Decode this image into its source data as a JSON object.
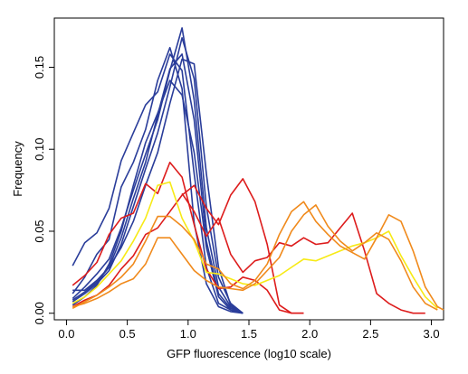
{
  "chart_data": {
    "type": "line",
    "title": "",
    "xlabel": "GFP fluorescence (log10 scale)",
    "ylabel": "Frequency",
    "xlim": [
      -0.1,
      3.1
    ],
    "ylim": [
      -0.004,
      0.18
    ],
    "xticks": [
      0.0,
      0.5,
      1.0,
      1.5,
      2.0,
      2.5,
      3.0
    ],
    "xtick_labels": [
      "0.0",
      "0.5",
      "1.0",
      "1.5",
      "2.0",
      "2.5",
      "3.0"
    ],
    "yticks": [
      0.0,
      0.05,
      0.1,
      0.15
    ],
    "ytick_labels": [
      "0.00",
      "0.05",
      "0.10",
      "0.15"
    ],
    "grid": false,
    "legend": "none",
    "series": [
      {
        "color": "#2a3d9a",
        "x": [
          0.05,
          0.15,
          0.25,
          0.35,
          0.45,
          0.55,
          0.65,
          0.75,
          0.85,
          0.95,
          1.05,
          1.15,
          1.25,
          1.35,
          1.45
        ],
        "y": [
          0.029,
          0.043,
          0.049,
          0.064,
          0.093,
          0.11,
          0.127,
          0.135,
          0.158,
          0.148,
          0.085,
          0.028,
          0.006,
          0.002,
          0.0
        ]
      },
      {
        "color": "#2a3d9a",
        "x": [
          0.05,
          0.15,
          0.25,
          0.35,
          0.45,
          0.55,
          0.65,
          0.75,
          0.85,
          0.95,
          1.05,
          1.15,
          1.25,
          1.35,
          1.45
        ],
        "y": [
          0.012,
          0.022,
          0.036,
          0.045,
          0.077,
          0.092,
          0.112,
          0.142,
          0.162,
          0.137,
          0.055,
          0.018,
          0.004,
          0.001,
          0.0
        ]
      },
      {
        "color": "#2a3d9a",
        "x": [
          0.05,
          0.15,
          0.25,
          0.35,
          0.45,
          0.55,
          0.65,
          0.75,
          0.85,
          0.95,
          1.05,
          1.15,
          1.25,
          1.35,
          1.45
        ],
        "y": [
          0.009,
          0.016,
          0.024,
          0.033,
          0.052,
          0.075,
          0.097,
          0.118,
          0.148,
          0.174,
          0.13,
          0.052,
          0.016,
          0.004,
          0.0
        ]
      },
      {
        "color": "#2a3d9a",
        "x": [
          0.05,
          0.15,
          0.25,
          0.35,
          0.45,
          0.55,
          0.65,
          0.75,
          0.85,
          0.95,
          1.05,
          1.15,
          1.25,
          1.35,
          1.45
        ],
        "y": [
          0.007,
          0.012,
          0.018,
          0.026,
          0.042,
          0.065,
          0.088,
          0.11,
          0.138,
          0.168,
          0.143,
          0.065,
          0.022,
          0.006,
          0.0
        ]
      },
      {
        "color": "#2a3d9a",
        "x": [
          0.05,
          0.15,
          0.25,
          0.35,
          0.45,
          0.55,
          0.65,
          0.75,
          0.85,
          0.95,
          1.05,
          1.15,
          1.25,
          1.35,
          1.45
        ],
        "y": [
          0.008,
          0.013,
          0.019,
          0.028,
          0.046,
          0.07,
          0.092,
          0.121,
          0.149,
          0.158,
          0.118,
          0.044,
          0.012,
          0.003,
          0.0
        ]
      },
      {
        "color": "#2a3d9a",
        "x": [
          0.05,
          0.15,
          0.25,
          0.35,
          0.45,
          0.55,
          0.65,
          0.75,
          0.85,
          0.95,
          1.05,
          1.15,
          1.25,
          1.35,
          1.45
        ],
        "y": [
          0.014,
          0.014,
          0.02,
          0.028,
          0.04,
          0.056,
          0.078,
          0.098,
          0.128,
          0.155,
          0.152,
          0.085,
          0.028,
          0.005,
          0.0
        ]
      },
      {
        "color": "#2a3d9a",
        "x": [
          0.05,
          0.15,
          0.25,
          0.35,
          0.45,
          0.55,
          0.65,
          0.75,
          0.85,
          0.95,
          1.05,
          1.15,
          1.25,
          1.35,
          1.45
        ],
        "y": [
          0.005,
          0.01,
          0.017,
          0.03,
          0.05,
          0.078,
          0.104,
          0.122,
          0.142,
          0.133,
          0.098,
          0.04,
          0.01,
          0.002,
          0.0
        ]
      },
      {
        "color": "#dd1c1c",
        "x": [
          0.05,
          0.15,
          0.25,
          0.35,
          0.45,
          0.55,
          0.65,
          0.75,
          0.85,
          0.95,
          1.05,
          1.15,
          1.25,
          1.35,
          1.45,
          1.55,
          1.65,
          1.75,
          1.85,
          1.95
        ],
        "y": [
          0.017,
          0.023,
          0.031,
          0.048,
          0.058,
          0.061,
          0.079,
          0.073,
          0.092,
          0.083,
          0.054,
          0.027,
          0.015,
          0.016,
          0.022,
          0.02,
          0.014,
          0.002,
          0.0,
          0.0
        ]
      },
      {
        "color": "#dd1c1c",
        "x": [
          0.05,
          0.15,
          0.25,
          0.35,
          0.45,
          0.55,
          0.65,
          0.75,
          0.85,
          0.95,
          1.05,
          1.15,
          1.25,
          1.35,
          1.45,
          1.55,
          1.65,
          1.75,
          1.85,
          1.95
        ],
        "y": [
          0.004,
          0.008,
          0.011,
          0.017,
          0.027,
          0.035,
          0.048,
          0.052,
          0.062,
          0.072,
          0.078,
          0.064,
          0.054,
          0.072,
          0.082,
          0.068,
          0.042,
          0.005,
          0.0,
          0.0
        ]
      },
      {
        "color": "#dd1c1c",
        "x": [
          0.95,
          1.05,
          1.15,
          1.25,
          1.35,
          1.45,
          1.55,
          1.65,
          1.75,
          1.85,
          1.95,
          2.05,
          2.15,
          2.25,
          2.35,
          2.45,
          2.55,
          2.65,
          2.75,
          2.85,
          2.95
        ],
        "y": [
          0.073,
          0.062,
          0.047,
          0.058,
          0.036,
          0.025,
          0.032,
          0.034,
          0.043,
          0.041,
          0.046,
          0.042,
          0.043,
          0.052,
          0.061,
          0.038,
          0.012,
          0.006,
          0.002,
          0.0,
          0.0
        ]
      },
      {
        "color": "#f7ea16",
        "x": [
          0.05,
          0.15,
          0.25,
          0.35,
          0.45,
          0.55,
          0.65,
          0.75,
          0.85,
          0.95,
          1.05,
          1.15,
          1.25,
          1.35,
          1.45,
          1.55,
          1.65,
          1.75,
          1.85,
          1.95,
          2.05,
          2.15,
          2.25,
          2.35,
          2.45,
          2.55,
          2.65,
          2.75,
          2.85,
          2.95,
          3.05
        ],
        "y": [
          0.006,
          0.01,
          0.016,
          0.024,
          0.032,
          0.044,
          0.058,
          0.078,
          0.08,
          0.058,
          0.044,
          0.025,
          0.024,
          0.021,
          0.018,
          0.017,
          0.02,
          0.023,
          0.028,
          0.033,
          0.032,
          0.035,
          0.038,
          0.041,
          0.043,
          0.046,
          0.05,
          0.035,
          0.022,
          0.01,
          0.003
        ]
      },
      {
        "color": "#f08a1c",
        "x": [
          0.05,
          0.15,
          0.25,
          0.35,
          0.45,
          0.55,
          0.65,
          0.75,
          0.85,
          0.95,
          1.05,
          1.15,
          1.25,
          1.35,
          1.45,
          1.55,
          1.65,
          1.75,
          1.85,
          1.95,
          2.05,
          2.15,
          2.25,
          2.35,
          2.45,
          2.55,
          2.65,
          2.75,
          2.85,
          2.95,
          3.05,
          3.1
        ],
        "y": [
          0.003,
          0.007,
          0.011,
          0.016,
          0.022,
          0.03,
          0.044,
          0.059,
          0.059,
          0.053,
          0.045,
          0.03,
          0.027,
          0.018,
          0.015,
          0.02,
          0.03,
          0.048,
          0.062,
          0.068,
          0.056,
          0.048,
          0.041,
          0.037,
          0.033,
          0.046,
          0.06,
          0.056,
          0.038,
          0.016,
          0.004,
          0.002
        ]
      },
      {
        "color": "#f08a1c",
        "x": [
          0.05,
          0.15,
          0.25,
          0.35,
          0.45,
          0.55,
          0.65,
          0.75,
          0.85,
          0.95,
          1.05,
          1.15,
          1.25,
          1.35,
          1.45,
          1.55,
          1.65,
          1.75,
          1.85,
          1.95,
          2.05,
          2.15,
          2.25,
          2.35,
          2.45,
          2.55,
          2.65,
          2.75,
          2.85,
          2.95,
          3.05
        ],
        "y": [
          0.004,
          0.006,
          0.009,
          0.013,
          0.018,
          0.021,
          0.03,
          0.046,
          0.046,
          0.036,
          0.026,
          0.02,
          0.016,
          0.015,
          0.014,
          0.018,
          0.026,
          0.034,
          0.05,
          0.06,
          0.066,
          0.053,
          0.044,
          0.038,
          0.043,
          0.049,
          0.045,
          0.032,
          0.016,
          0.006,
          0.002
        ]
      }
    ]
  }
}
